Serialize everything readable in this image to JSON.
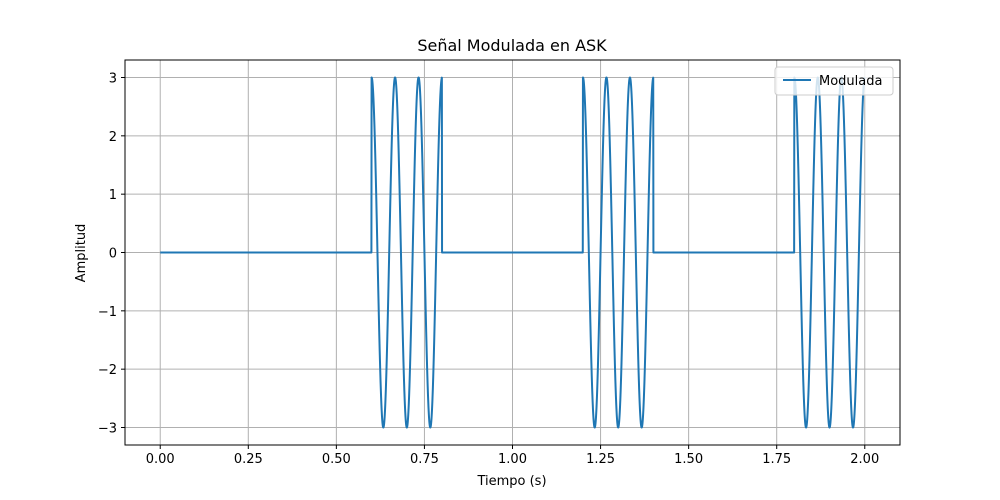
{
  "chart_data": {
    "type": "line",
    "title": "Señal Modulada en ASK",
    "xlabel": "Tiempo (s)",
    "ylabel": "Amplitud",
    "xlim": [
      -0.1,
      2.1
    ],
    "ylim": [
      -3.3,
      3.3
    ],
    "xticks": [
      0.0,
      0.25,
      0.5,
      0.75,
      1.0,
      1.25,
      1.5,
      1.75,
      2.0
    ],
    "xtick_labels": [
      "0.00",
      "0.25",
      "0.50",
      "0.75",
      "1.00",
      "1.25",
      "1.50",
      "1.75",
      "2.00"
    ],
    "yticks": [
      -3,
      -2,
      -1,
      0,
      1,
      2,
      3
    ],
    "ytick_labels": [
      "−3",
      "−2",
      "−1",
      "0",
      "1",
      "2",
      "3"
    ],
    "grid": true,
    "legend_position": "top-right",
    "series": [
      {
        "name": "Modulada",
        "color": "#1f77b4",
        "amplitude": 3,
        "carrier_frequency_hz": 15,
        "phase": "cosine",
        "bits": [
          0,
          0,
          0,
          1,
          0,
          0,
          1,
          0,
          0,
          1
        ],
        "bit_duration_s": 0.2,
        "t_range": [
          0,
          2
        ]
      }
    ]
  }
}
